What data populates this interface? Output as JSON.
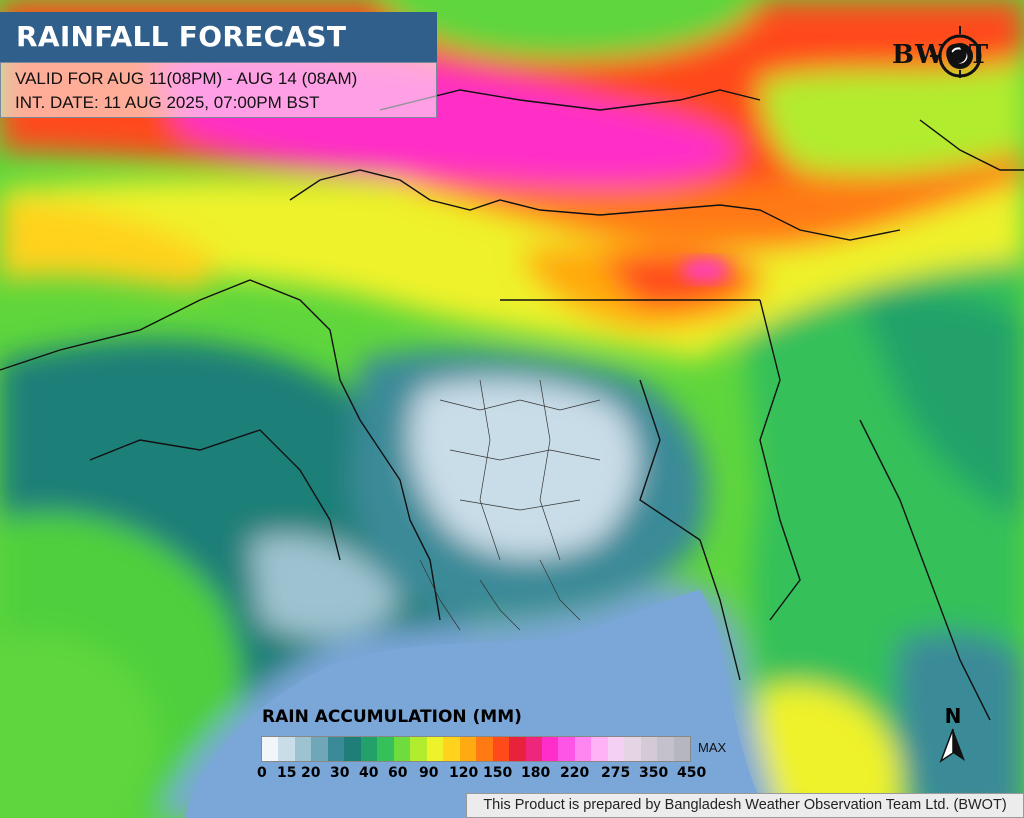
{
  "header": {
    "title": "RAINFALL FORECAST",
    "valid_for": "VALID FOR AUG 11(08PM) - AUG 14 (08AM)",
    "init_date": "INT. DATE: 11 AUG 2025, 07:00PM BST"
  },
  "logo": {
    "text": "BWOT",
    "icon": "globe-logo-icon"
  },
  "legend": {
    "title": "RAIN ACCUMULATION (MM)",
    "max_label": "MAX",
    "ticks": [
      "0",
      "15",
      "20",
      "30",
      "40",
      "60",
      "90",
      "120",
      "150",
      "180",
      "220",
      "275",
      "350",
      "450"
    ],
    "colors": [
      "#f2f6fb",
      "#c9dde8",
      "#9dc3d0",
      "#6fa7b8",
      "#3b8a98",
      "#1f7f78",
      "#22a26a",
      "#36c05a",
      "#6edc3c",
      "#b2ec2e",
      "#eef22a",
      "#ffd21c",
      "#ffaa10",
      "#ff7a12",
      "#ff4a1a",
      "#e8223a",
      "#f0267c",
      "#ff2ec8",
      "#ff55e6",
      "#ff86f0",
      "#ffb2f6",
      "#f4d0f4",
      "#e4d4e4",
      "#d4cad6",
      "#c4c0cc",
      "#b4b6c0"
    ]
  },
  "north_arrow": {
    "label": "N",
    "icon": "north-arrow-icon"
  },
  "footer": {
    "credit": "This Product is prepared by Bangladesh Weather Observation Team Ltd. (BWOT)"
  },
  "colors": {
    "title_bg": "#2f5f8a",
    "sea": "#7aa6d8",
    "accent": "#ff2ec8"
  }
}
